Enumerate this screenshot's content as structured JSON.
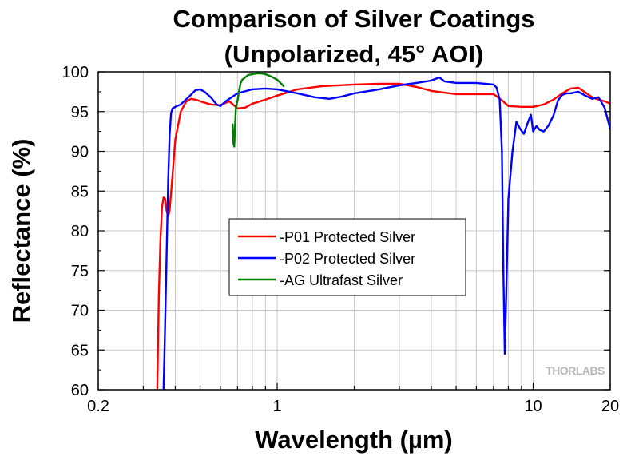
{
  "chart_data": {
    "type": "line",
    "title": [
      "Comparison of Silver Coatings",
      "(Unpolarized, 45° AOI)"
    ],
    "xlabel": "Wavelength (µm)",
    "ylabel": "Reflectance (%)",
    "xscale": "log",
    "xlim": [
      0.2,
      20
    ],
    "ylim": [
      60,
      100
    ],
    "xticks": [
      0.2,
      1,
      10,
      20
    ],
    "xtick_labels": [
      "0.2",
      "1",
      "10",
      "20"
    ],
    "yticks": [
      60,
      65,
      70,
      75,
      80,
      85,
      90,
      95,
      100
    ],
    "ytick_labels": [
      "60",
      "65",
      "70",
      "75",
      "80",
      "85",
      "90",
      "95",
      "100"
    ],
    "grid": true,
    "legend_position": "center",
    "watermark": "THORLABS",
    "series": [
      {
        "name": "-P01 Protected Silver",
        "color": "#ff0000",
        "x": [
          0.34,
          0.345,
          0.35,
          0.355,
          0.36,
          0.365,
          0.37,
          0.375,
          0.38,
          0.39,
          0.4,
          0.42,
          0.44,
          0.46,
          0.48,
          0.5,
          0.55,
          0.6,
          0.65,
          0.7,
          0.75,
          0.8,
          0.9,
          1.0,
          1.2,
          1.5,
          2.0,
          2.5,
          3.0,
          3.5,
          4.0,
          5.0,
          6.0,
          7.0,
          7.5,
          8.0,
          9.0,
          10.0,
          11.0,
          12.0,
          13.0,
          14.0,
          15.0,
          16.0,
          17.0,
          18.0,
          19.0,
          20.0
        ],
        "y": [
          60,
          72,
          79,
          83,
          84.2,
          84,
          82.5,
          81.8,
          82.5,
          87,
          91.5,
          95,
          96.2,
          96.6,
          96.5,
          96.3,
          95.9,
          95.8,
          96.3,
          95.4,
          95.5,
          96.0,
          96.5,
          97.0,
          97.8,
          98.2,
          98.4,
          98.5,
          98.5,
          98.1,
          97.6,
          97.2,
          97.2,
          97.2,
          96.5,
          95.7,
          95.6,
          95.6,
          95.9,
          96.5,
          97.3,
          97.9,
          98.0,
          97.4,
          96.8,
          96.5,
          96.3,
          96.0
        ]
      },
      {
        "name": "-P02 Protected Silver",
        "color": "#0000ff",
        "x": [
          0.36,
          0.365,
          0.37,
          0.375,
          0.38,
          0.385,
          0.39,
          0.4,
          0.42,
          0.45,
          0.48,
          0.5,
          0.52,
          0.55,
          0.58,
          0.6,
          0.63,
          0.7,
          0.8,
          0.9,
          1.0,
          1.2,
          1.4,
          1.6,
          1.8,
          2.0,
          2.5,
          3.0,
          3.5,
          4.0,
          4.3,
          4.5,
          5.0,
          6.0,
          7.0,
          7.2,
          7.4,
          7.55,
          7.65,
          7.75,
          7.85,
          8.0,
          8.3,
          8.6,
          8.9,
          9.2,
          9.5,
          9.8,
          10.0,
          10.3,
          10.6,
          11.0,
          11.5,
          12.0,
          12.5,
          13.0,
          13.5,
          14.0,
          15.0,
          16.0,
          17.0,
          18.0,
          19.0,
          20.0
        ],
        "y": [
          60,
          68,
          77,
          86,
          92,
          94.8,
          95.4,
          95.6,
          95.9,
          96.8,
          97.7,
          97.8,
          97.5,
          96.8,
          95.9,
          95.7,
          96.3,
          97.3,
          97.8,
          97.9,
          97.8,
          97.3,
          96.8,
          96.6,
          96.9,
          97.3,
          97.8,
          98.3,
          98.6,
          98.9,
          99.3,
          98.8,
          98.6,
          98.6,
          98.4,
          98.0,
          96.5,
          90.0,
          75.0,
          64.5,
          72.0,
          84.0,
          90.0,
          93.7,
          92.8,
          92.2,
          93.5,
          94.6,
          92.5,
          93.2,
          92.7,
          92.5,
          93.3,
          94.5,
          96.4,
          97.1,
          97.3,
          97.3,
          97.5,
          97.0,
          96.6,
          96.8,
          95.5,
          92.8
        ]
      },
      {
        "name": "-AG Ultrafast Silver",
        "color": "#008000",
        "x": [
          0.67,
          0.675,
          0.68,
          0.685,
          0.69,
          0.7,
          0.71,
          0.72,
          0.73,
          0.75,
          0.77,
          0.8,
          0.83,
          0.86,
          0.9,
          0.95,
          1.0,
          1.03,
          1.06
        ],
        "y": [
          93.4,
          91.0,
          90.6,
          93.5,
          95.6,
          96.4,
          97.6,
          98.6,
          99.0,
          99.3,
          99.6,
          99.7,
          99.8,
          99.8,
          99.7,
          99.4,
          99.0,
          98.6,
          98.2
        ]
      }
    ]
  }
}
